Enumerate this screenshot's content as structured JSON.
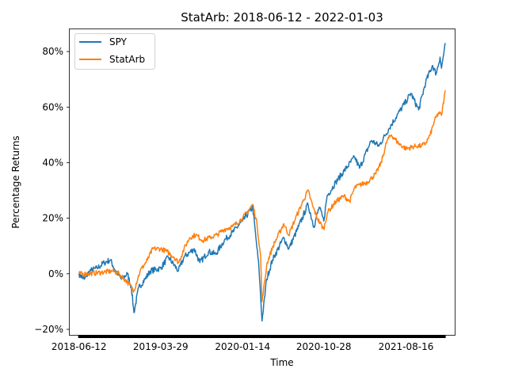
{
  "chart_data": {
    "type": "line",
    "title": "StatArb: 2018-06-12 - 2022-01-03",
    "xlabel": "Time",
    "ylabel": "Percentage Returns",
    "x_range": [
      "2018-06-12",
      "2022-01-03"
    ],
    "xlim": [
      "2018-05-10",
      "2022-02-05"
    ],
    "ylim": [
      -22,
      88
    ],
    "x_ticks": [
      "2018-06-12",
      "2019-03-29",
      "2020-01-14",
      "2020-10-28",
      "2021-08-16"
    ],
    "y_ticks": [
      -20,
      0,
      20,
      40,
      60,
      80
    ],
    "y_tick_labels": [
      "−20%",
      "0%",
      "20%",
      "40%",
      "60%",
      "80%"
    ],
    "legend_position": "top-left",
    "grid": false,
    "series": [
      {
        "name": "SPY",
        "color": "#1f77b4",
        "points": [
          [
            "2018-06-12",
            0
          ],
          [
            "2018-07-01",
            -2
          ],
          [
            "2018-07-20",
            1
          ],
          [
            "2018-08-15",
            2
          ],
          [
            "2018-09-10",
            4
          ],
          [
            "2018-10-01",
            5
          ],
          [
            "2018-10-20",
            1
          ],
          [
            "2018-11-10",
            -2
          ],
          [
            "2018-12-01",
            0
          ],
          [
            "2018-12-15",
            -5
          ],
          [
            "2018-12-24",
            -14
          ],
          [
            "2019-01-10",
            -5
          ],
          [
            "2019-02-01",
            -2
          ],
          [
            "2019-02-20",
            1
          ],
          [
            "2019-03-29",
            2
          ],
          [
            "2019-04-25",
            6
          ],
          [
            "2019-05-31",
            1
          ],
          [
            "2019-06-20",
            6
          ],
          [
            "2019-07-26",
            9
          ],
          [
            "2019-08-15",
            4
          ],
          [
            "2019-09-15",
            8
          ],
          [
            "2019-10-10",
            7
          ],
          [
            "2019-11-10",
            12
          ],
          [
            "2019-12-10",
            15
          ],
          [
            "2020-01-14",
            19
          ],
          [
            "2020-02-19",
            24
          ],
          [
            "2020-03-01",
            13
          ],
          [
            "2020-03-12",
            2
          ],
          [
            "2020-03-23",
            -17
          ],
          [
            "2020-04-08",
            -2
          ],
          [
            "2020-04-29",
            5
          ],
          [
            "2020-06-08",
            13
          ],
          [
            "2020-06-26",
            9
          ],
          [
            "2020-07-31",
            17
          ],
          [
            "2020-09-02",
            25
          ],
          [
            "2020-09-23",
            17
          ],
          [
            "2020-10-12",
            24
          ],
          [
            "2020-10-28",
            19
          ],
          [
            "2020-11-09",
            28
          ],
          [
            "2020-12-10",
            33
          ],
          [
            "2021-01-08",
            37
          ],
          [
            "2021-02-15",
            42
          ],
          [
            "2021-03-04",
            38
          ],
          [
            "2021-04-15",
            48
          ],
          [
            "2021-05-12",
            46
          ],
          [
            "2021-06-15",
            52
          ],
          [
            "2021-07-15",
            57
          ],
          [
            "2021-08-16",
            62
          ],
          [
            "2021-09-02",
            65
          ],
          [
            "2021-09-30",
            59
          ],
          [
            "2021-10-25",
            69
          ],
          [
            "2021-11-18",
            75
          ],
          [
            "2021-12-01",
            72
          ],
          [
            "2021-12-15",
            78
          ],
          [
            "2021-12-20",
            74
          ],
          [
            "2022-01-03",
            83
          ]
        ]
      },
      {
        "name": "StatArb",
        "color": "#ff7f0e",
        "points": [
          [
            "2018-06-12",
            0
          ],
          [
            "2018-07-15",
            0
          ],
          [
            "2018-09-01",
            0.5
          ],
          [
            "2018-10-10",
            1
          ],
          [
            "2018-11-01",
            0
          ],
          [
            "2018-12-01",
            -3
          ],
          [
            "2018-12-24",
            -6
          ],
          [
            "2019-01-15",
            1
          ],
          [
            "2019-02-10",
            5
          ],
          [
            "2019-03-01",
            9
          ],
          [
            "2019-03-29",
            9
          ],
          [
            "2019-04-20",
            8
          ],
          [
            "2019-05-15",
            6
          ],
          [
            "2019-06-01",
            4
          ],
          [
            "2019-06-20",
            9
          ],
          [
            "2019-07-10",
            13
          ],
          [
            "2019-08-01",
            14
          ],
          [
            "2019-08-25",
            12
          ],
          [
            "2019-09-20",
            13
          ],
          [
            "2019-10-15",
            14
          ],
          [
            "2019-11-10",
            16
          ],
          [
            "2019-12-10",
            17
          ],
          [
            "2020-01-14",
            20
          ],
          [
            "2020-02-05",
            23
          ],
          [
            "2020-02-19",
            25
          ],
          [
            "2020-03-05",
            18
          ],
          [
            "2020-03-18",
            6
          ],
          [
            "2020-03-23",
            -10
          ],
          [
            "2020-04-10",
            4
          ],
          [
            "2020-05-01",
            10
          ],
          [
            "2020-06-08",
            18
          ],
          [
            "2020-06-26",
            14
          ],
          [
            "2020-07-20",
            20
          ],
          [
            "2020-08-15",
            26
          ],
          [
            "2020-09-02",
            30
          ],
          [
            "2020-09-20",
            24
          ],
          [
            "2020-10-05",
            20
          ],
          [
            "2020-10-28",
            16
          ],
          [
            "2020-11-10",
            22
          ],
          [
            "2020-12-10",
            26
          ],
          [
            "2021-01-08",
            28
          ],
          [
            "2021-01-28",
            26
          ],
          [
            "2021-02-15",
            31
          ],
          [
            "2021-03-05",
            32
          ],
          [
            "2021-04-01",
            33
          ],
          [
            "2021-05-01",
            36
          ],
          [
            "2021-05-20",
            40
          ],
          [
            "2021-06-10",
            48
          ],
          [
            "2021-06-25",
            50
          ],
          [
            "2021-07-20",
            47
          ],
          [
            "2021-08-16",
            45
          ],
          [
            "2021-09-20",
            46
          ],
          [
            "2021-10-10",
            46
          ],
          [
            "2021-10-25",
            47
          ],
          [
            "2021-11-10",
            50
          ],
          [
            "2021-11-25",
            55
          ],
          [
            "2021-12-10",
            58
          ],
          [
            "2021-12-20",
            57
          ],
          [
            "2022-01-03",
            66
          ]
        ]
      }
    ]
  }
}
